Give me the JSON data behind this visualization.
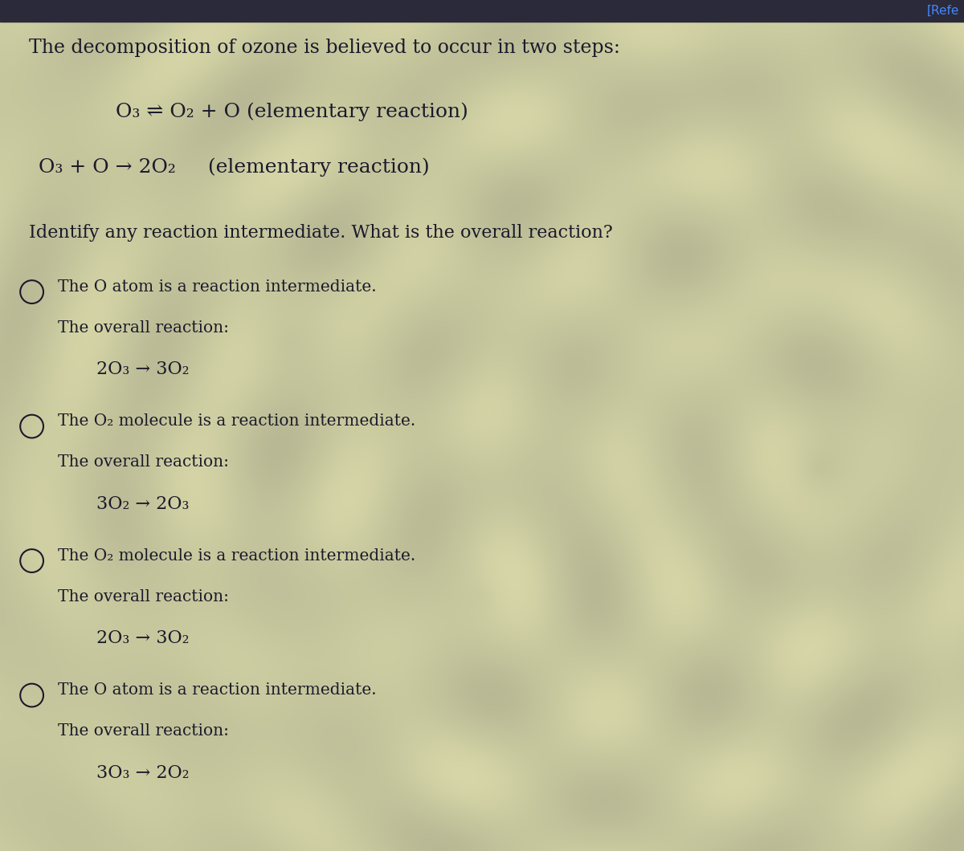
{
  "bg_color_light": "#b8b898",
  "bg_color_mid": "#c8c8a8",
  "bg_color_dark": "#a8a880",
  "text_color": "#1a1a2a",
  "dark_bar_color": "#2a2a3a",
  "title_text": "The decomposition of ozone is believed to occur in two steps:",
  "step1_parts": [
    "O₃ ⇌ O₂ + O",
    " (elementary reaction)"
  ],
  "step2_parts": [
    "O₃ + O → 2O₂",
    "     (elementary reaction)"
  ],
  "question": "Identify any reaction intermediate. What is the overall reaction?",
  "options": [
    {
      "intermediate": "The O atom is a reaction intermediate.",
      "overall_label": "The overall reaction:",
      "reaction": "2O₃ → 3O₂"
    },
    {
      "intermediate": "The O₂ molecule is a reaction intermediate.",
      "overall_label": "The overall reaction:",
      "reaction": "3O₂ → 2O₃"
    },
    {
      "intermediate": "The O₂ molecule is a reaction intermediate.",
      "overall_label": "The overall reaction:",
      "reaction": "2O₃ → 3O₂"
    },
    {
      "intermediate": "The O atom is a reaction intermediate.",
      "overall_label": "The overall reaction:",
      "reaction": "3O₃ → 2O₂"
    }
  ],
  "refe_color": "#4488ff",
  "figsize": [
    12.0,
    10.6
  ],
  "dpi": 100
}
